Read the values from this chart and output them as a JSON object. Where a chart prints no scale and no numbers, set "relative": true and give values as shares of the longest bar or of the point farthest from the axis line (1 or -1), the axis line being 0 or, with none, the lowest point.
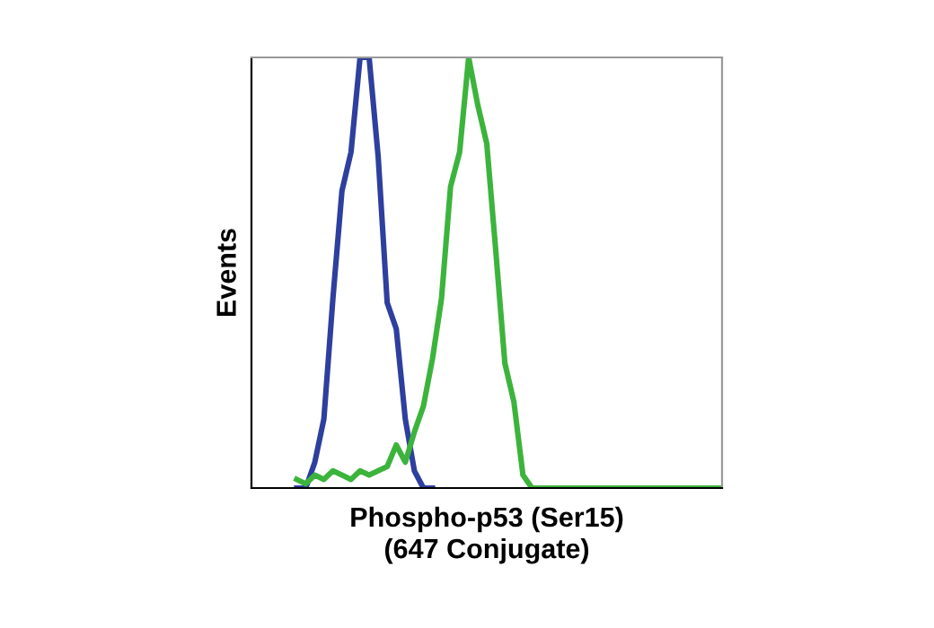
{
  "chart_data": {
    "type": "line",
    "relative": true,
    "xlabel": "Phospho-p53 (Ser15)\n(647 Conjugate)",
    "ylabel": "Events",
    "categories": [
      null,
      null,
      null,
      null,
      null,
      null,
      null,
      null,
      null,
      null,
      null,
      null,
      null,
      null,
      null,
      null,
      null,
      null,
      null,
      null,
      null,
      null,
      null,
      null,
      null,
      null,
      null,
      null,
      null,
      null,
      null,
      null,
      null,
      null,
      null,
      null,
      null,
      null,
      null,
      null,
      null,
      null,
      null,
      null,
      null,
      null,
      null,
      null,
      null,
      null,
      null,
      null,
      null
    ],
    "series": [
      {
        "color": "#2e3f9e",
        "values": [
          null,
          null,
          null,
          null,
          null,
          0,
          0,
          0.06,
          0.16,
          0.44,
          0.69,
          0.78,
          1.0,
          1.0,
          0.77,
          0.43,
          0.37,
          0.16,
          0.04,
          0,
          0,
          null,
          null,
          null,
          null,
          null,
          null,
          null,
          null,
          null,
          null,
          null,
          null,
          null,
          null,
          null,
          null,
          null,
          null,
          null,
          null,
          null,
          null,
          null,
          null,
          null,
          null,
          null,
          null,
          null,
          null,
          null,
          null
        ]
      },
      {
        "color": "#3cb43c",
        "values": [
          null,
          null,
          null,
          null,
          null,
          0.02,
          0.01,
          0.03,
          0.02,
          0.04,
          0.03,
          0.02,
          0.04,
          0.03,
          0.04,
          0.05,
          0.1,
          0.06,
          0.13,
          0.19,
          0.3,
          0.44,
          0.7,
          0.78,
          1.0,
          0.89,
          0.8,
          0.55,
          0.29,
          0.2,
          0.03,
          0,
          0,
          0,
          0,
          0,
          0,
          0,
          0,
          0,
          0,
          0,
          0,
          0,
          0,
          0,
          0,
          0,
          0,
          0,
          0,
          0,
          0
        ]
      }
    ],
    "grid": false,
    "legend": false
  }
}
